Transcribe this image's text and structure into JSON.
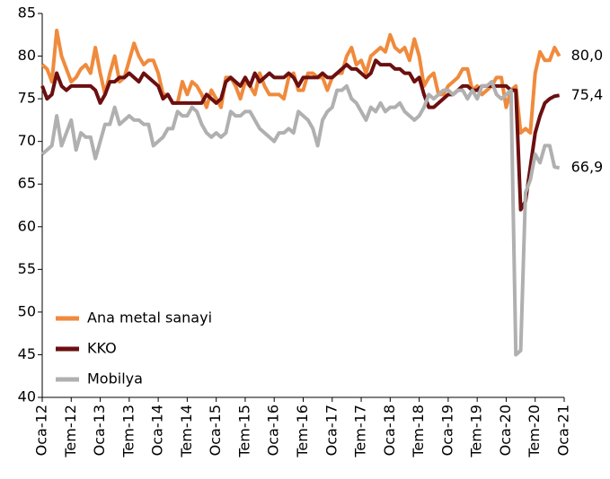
{
  "chart_data": {
    "type": "line",
    "categories": [
      "Oca-12",
      null,
      null,
      null,
      null,
      null,
      "Tem-12",
      null,
      null,
      null,
      null,
      null,
      "Oca-13",
      null,
      null,
      null,
      null,
      null,
      "Tem-13",
      null,
      null,
      null,
      null,
      null,
      "Oca-14",
      null,
      null,
      null,
      null,
      null,
      "Tem-14",
      null,
      null,
      null,
      null,
      null,
      "Oca-15",
      null,
      null,
      null,
      null,
      null,
      "Tem-15",
      null,
      null,
      null,
      null,
      null,
      "Oca-16",
      null,
      null,
      null,
      null,
      null,
      "Tem-16",
      null,
      null,
      null,
      null,
      null,
      "Oca-17",
      null,
      null,
      null,
      null,
      null,
      "Tem-17",
      null,
      null,
      null,
      null,
      null,
      "Oca-18",
      null,
      null,
      null,
      null,
      null,
      "Tem-18",
      null,
      null,
      null,
      null,
      null,
      "Oca-19",
      null,
      null,
      null,
      null,
      null,
      "Tem-19",
      null,
      null,
      null,
      null,
      null,
      "Oca-20",
      null,
      null,
      null,
      null,
      null,
      "Tem-20",
      null,
      null,
      null,
      null,
      null,
      "Oca-21"
    ],
    "series": [
      {
        "name": "Ana metal sanayi",
        "color": "#f08a3c",
        "values": [
          79,
          78.5,
          77,
          83,
          80,
          78.5,
          77,
          77.5,
          78.5,
          79,
          78,
          81,
          78,
          75.5,
          78,
          80,
          77,
          77.5,
          79.5,
          81.5,
          80,
          79,
          79.5,
          79.5,
          78,
          75.5,
          75.5,
          74.5,
          74.5,
          77,
          75.5,
          77,
          76.5,
          75.5,
          74,
          76,
          75,
          74,
          77.5,
          77.5,
          76.5,
          75,
          77,
          76.5,
          75.5,
          78,
          76.5,
          75.5,
          75.5,
          75.5,
          75,
          77.5,
          78,
          76,
          76,
          78,
          78,
          77.5,
          77.5,
          76,
          77.5,
          78,
          78,
          80,
          81,
          79,
          79.5,
          78,
          80,
          80.5,
          81,
          80.5,
          82.5,
          81,
          80.5,
          81,
          79.5,
          82,
          80,
          76.5,
          77.5,
          78,
          75.5,
          75.5,
          76.5,
          77,
          77.5,
          78.5,
          78.5,
          76,
          76.5,
          75.5,
          76,
          76.5,
          77.5,
          77.5,
          74,
          76,
          76.5,
          71,
          71.5,
          71,
          78,
          80.5,
          79.5,
          79.5,
          81,
          80.0,
          null
        ],
        "value_labels": [
          null,
          null,
          null,
          null,
          null,
          null,
          null,
          null,
          null,
          null,
          null,
          null,
          null,
          null,
          null,
          null,
          null,
          null,
          null,
          null,
          null,
          null,
          null,
          null,
          null,
          null,
          null,
          null,
          null,
          null,
          null,
          null,
          null,
          null,
          null,
          null,
          null,
          null,
          null,
          null,
          null,
          null,
          null,
          null,
          null,
          null,
          null,
          null,
          null,
          null,
          null,
          null,
          null,
          null,
          null,
          null,
          null,
          null,
          null,
          null,
          null,
          null,
          null,
          null,
          null,
          null,
          null,
          null,
          null,
          null,
          null,
          null,
          null,
          null,
          null,
          null,
          null,
          null,
          null,
          null,
          null,
          null,
          null,
          null,
          null,
          null,
          null,
          null,
          null,
          null,
          null,
          null,
          null,
          null,
          null,
          null,
          null,
          null,
          null,
          null,
          null,
          null,
          null,
          null,
          null,
          null,
          null,
          "80,0",
          null
        ]
      },
      {
        "name": "KKO",
        "color": "#6b0f10",
        "values": [
          76.5,
          75,
          75.5,
          78,
          76.5,
          76,
          76.5,
          76.5,
          76.5,
          76.5,
          76.5,
          76,
          74.5,
          75.5,
          77,
          77,
          77.5,
          77.5,
          78,
          77.5,
          77,
          78,
          77.5,
          77,
          76.5,
          75,
          75.5,
          74.5,
          74.5,
          74.5,
          74.5,
          74.5,
          74.5,
          74.5,
          75.5,
          75,
          74.5,
          75,
          77,
          77.5,
          77,
          76.5,
          77.5,
          76.5,
          78,
          77,
          77.5,
          78,
          77.5,
          77.5,
          77.5,
          78,
          77.5,
          76.5,
          77.5,
          77.5,
          77.5,
          77.5,
          78,
          77.5,
          77.5,
          78,
          78.5,
          79,
          78.5,
          78.5,
          78,
          77.5,
          78,
          79.5,
          79,
          79,
          79,
          78.5,
          78.5,
          78,
          78,
          77,
          77.5,
          75.5,
          74,
          74,
          74.5,
          75,
          75.5,
          75.5,
          76,
          76.5,
          76.5,
          76,
          76,
          76.5,
          76.5,
          76.5,
          76.5,
          76.5,
          76.5,
          76,
          76,
          62,
          63,
          67,
          71,
          73,
          74.5,
          75,
          75.3,
          75.4,
          null
        ],
        "value_labels": [
          null,
          null,
          null,
          null,
          null,
          null,
          null,
          null,
          null,
          null,
          null,
          null,
          null,
          null,
          null,
          null,
          null,
          null,
          null,
          null,
          null,
          null,
          null,
          null,
          null,
          null,
          null,
          null,
          null,
          null,
          null,
          null,
          null,
          null,
          null,
          null,
          null,
          null,
          null,
          null,
          null,
          null,
          null,
          null,
          null,
          null,
          null,
          null,
          null,
          null,
          null,
          null,
          null,
          null,
          null,
          null,
          null,
          null,
          null,
          null,
          null,
          null,
          null,
          null,
          null,
          null,
          null,
          null,
          null,
          null,
          null,
          null,
          null,
          null,
          null,
          null,
          null,
          null,
          null,
          null,
          null,
          null,
          null,
          null,
          null,
          null,
          null,
          null,
          null,
          null,
          null,
          null,
          null,
          null,
          null,
          null,
          null,
          null,
          null,
          null,
          null,
          null,
          null,
          null,
          null,
          null,
          null,
          "75,4",
          null
        ]
      },
      {
        "name": "Mobilya",
        "color": "#b0b0b0",
        "values": [
          68.5,
          69,
          69.5,
          73,
          69.5,
          71,
          72.5,
          69,
          71,
          70.5,
          70.5,
          68,
          70,
          72,
          72,
          74,
          72,
          72.5,
          73,
          72.5,
          72.5,
          72,
          72,
          69.5,
          70,
          70.5,
          71.5,
          71.5,
          73.5,
          73,
          73,
          74,
          73.5,
          72,
          71,
          70.5,
          71,
          70.5,
          71,
          73.5,
          73,
          73,
          73.5,
          73.5,
          72.5,
          71.5,
          71,
          70.5,
          70,
          71,
          71,
          71.5,
          71,
          73.5,
          73,
          72.5,
          71.5,
          69.5,
          72.5,
          73.5,
          74,
          76,
          76,
          76.5,
          75,
          74.5,
          73.5,
          72.5,
          74,
          73.5,
          74.5,
          73.5,
          74,
          74,
          74.5,
          73.5,
          73,
          72.5,
          73,
          74,
          75.5,
          75,
          75.5,
          76,
          76,
          75.5,
          76,
          76,
          75,
          76,
          75,
          76.5,
          76.5,
          77,
          75.5,
          75,
          75.5,
          76,
          45,
          45.5,
          64,
          65.5,
          68.5,
          67.5,
          69.5,
          69.5,
          67,
          66.9,
          null
        ],
        "value_labels": [
          null,
          null,
          null,
          null,
          null,
          null,
          null,
          null,
          null,
          null,
          null,
          null,
          null,
          null,
          null,
          null,
          null,
          null,
          null,
          null,
          null,
          null,
          null,
          null,
          null,
          null,
          null,
          null,
          null,
          null,
          null,
          null,
          null,
          null,
          null,
          null,
          null,
          null,
          null,
          null,
          null,
          null,
          null,
          null,
          null,
          null,
          null,
          null,
          null,
          null,
          null,
          null,
          null,
          null,
          null,
          null,
          null,
          null,
          null,
          null,
          null,
          null,
          null,
          null,
          null,
          null,
          null,
          null,
          null,
          null,
          null,
          null,
          null,
          null,
          null,
          null,
          null,
          null,
          null,
          null,
          null,
          null,
          null,
          null,
          null,
          null,
          null,
          null,
          null,
          null,
          null,
          null,
          null,
          null,
          null,
          null,
          null,
          null,
          null,
          null,
          null,
          null,
          null,
          null,
          null,
          null,
          null,
          "66,9",
          null
        ]
      }
    ],
    "ylim": [
      40,
      85
    ],
    "yticks": [
      40,
      45,
      50,
      55,
      60,
      65,
      70,
      75,
      80,
      85
    ],
    "grid": false,
    "legend": "lower left"
  }
}
